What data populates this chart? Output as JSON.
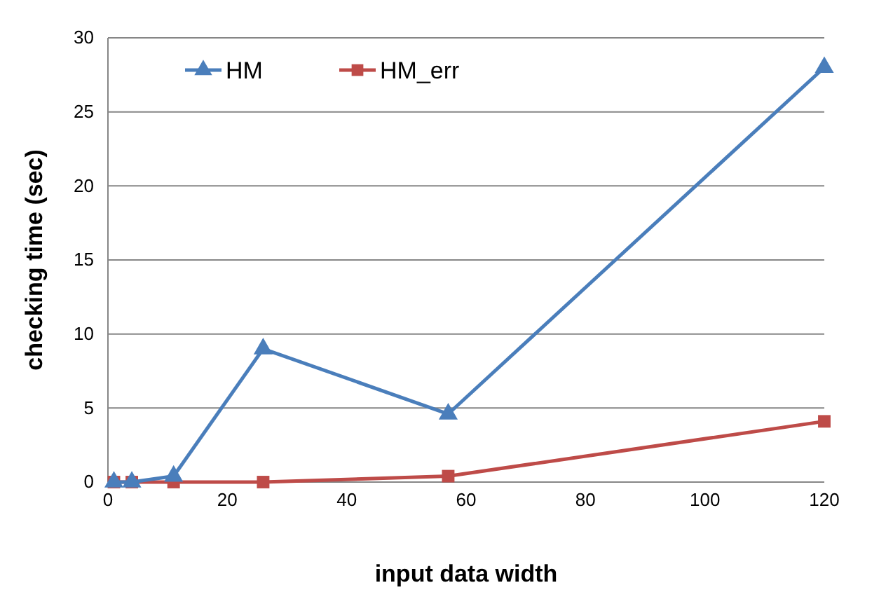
{
  "chart_data": {
    "type": "line",
    "xlabel": "input data width",
    "ylabel": "checking time (sec)",
    "xlim": [
      0,
      120
    ],
    "xticks": [
      0,
      20,
      40,
      60,
      80,
      100,
      120
    ],
    "ylim": [
      0,
      30
    ],
    "yticks": [
      0,
      5,
      10,
      15,
      20,
      25,
      30
    ],
    "grid": "y",
    "legend": "top left",
    "series": [
      {
        "name": "HM",
        "color": "#4a7ebb",
        "marker": "triangle",
        "x": [
          1,
          4,
          11,
          26,
          57,
          120
        ],
        "values": [
          0,
          0,
          0.4,
          9,
          4.6,
          28
        ]
      },
      {
        "name": "HM_err",
        "color": "#be4b48",
        "marker": "square",
        "x": [
          1,
          4,
          11,
          26,
          57,
          120
        ],
        "values": [
          0,
          0,
          0,
          0,
          0.4,
          4.1
        ]
      }
    ]
  }
}
